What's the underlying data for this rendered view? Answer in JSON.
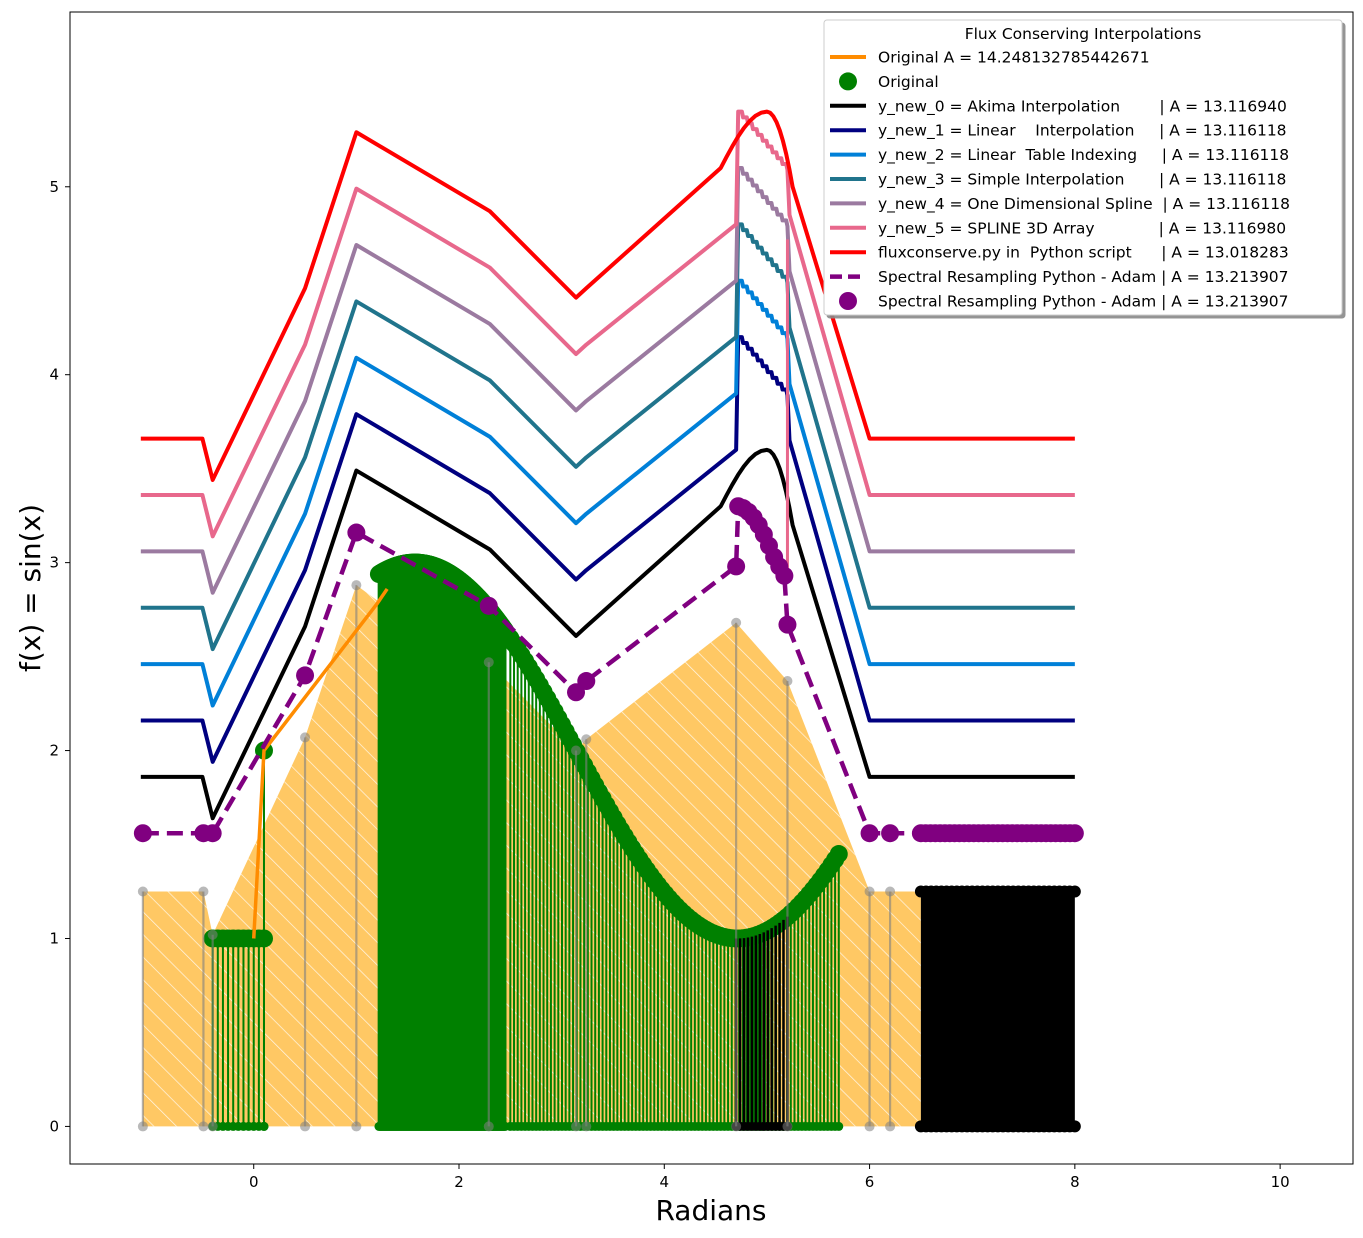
{
  "chart_data": {
    "type": "line",
    "title": "",
    "xlabel": "Radians",
    "ylabel": "f(x) = sin(x)",
    "xlim": [
      -1.79,
      10.71
    ],
    "ylim": [
      -0.2,
      5.93
    ],
    "xticks": [
      0,
      2,
      4,
      6,
      8,
      10
    ],
    "yticks": [
      0,
      1,
      2,
      3,
      4,
      5
    ],
    "grid": false,
    "legend": {
      "title": "Flux Conserving Interpolations",
      "placement": "top-right",
      "entries": [
        {
          "label": "Original A = 14.248132785442671",
          "color": "#ff8c00",
          "style": "line"
        },
        {
          "label": "Original",
          "color": "#008000",
          "style": "marker"
        },
        {
          "label": "y_new_0 = Akima Interpolation        | A = 13.116940",
          "color": "#000000",
          "style": "line"
        },
        {
          "label": "y_new_1 = Linear    Interpolation     | A = 13.116118",
          "color": "#000080",
          "style": "line"
        },
        {
          "label": "y_new_2 = Linear  Table Indexing     | A = 13.116118",
          "color": "#0080d8",
          "style": "line"
        },
        {
          "label": "y_new_3 = Simple Interpolation       | A = 13.116118",
          "color": "#20748c",
          "style": "line"
        },
        {
          "label": "y_new_4 = One Dimensional Spline  | A = 13.116118",
          "color": "#9b7aa0",
          "style": "line"
        },
        {
          "label": "y_new_5 = SPLINE 3D Array             | A = 13.116980",
          "color": "#e8688c",
          "style": "line"
        },
        {
          "label": "fluxconserve.py in  Python script      | A = 13.018283",
          "color": "#ff0000",
          "style": "line"
        },
        {
          "label": "Spectral Resampling Python - Adam | A = 13.213907",
          "color": "#800080",
          "style": "dashed"
        },
        {
          "label": "Spectral Resampling Python - Adam | A = 13.213907",
          "color": "#800080",
          "style": "marker"
        }
      ]
    },
    "original_line": {
      "name": "Original A = 14.248132785442671",
      "color": "#ff8c00",
      "x": [
        0.0,
        0.1,
        1.2,
        1.3
      ],
      "y": [
        1.0,
        2.0,
        2.78,
        2.86
      ]
    },
    "grey_stems": {
      "color": "#808080",
      "x": [
        -1.08,
        -0.49,
        -0.4,
        0.5,
        1.0,
        2.29,
        3.14,
        3.24,
        4.7,
        5.2,
        6.0,
        6.2
      ],
      "y": [
        1.25,
        1.25,
        1.02,
        2.07,
        2.88,
        2.47,
        2.0,
        2.06,
        2.68,
        2.37,
        1.25,
        1.25
      ]
    },
    "orange_fill": {
      "color": "#ffc864",
      "x": [
        -1.08,
        -0.49,
        -0.4,
        0.5,
        1.0,
        1.2,
        2.29,
        3.14,
        3.24,
        4.7,
        5.2,
        6.0,
        6.2,
        6.5
      ],
      "y": [
        1.25,
        1.25,
        1.02,
        2.07,
        2.88,
        2.8,
        2.47,
        2.0,
        2.06,
        2.68,
        2.37,
        1.25,
        1.25,
        1.25
      ]
    },
    "green_stems": {
      "color": "#008000",
      "segments": [
        {
          "func": "const",
          "value": 1.0,
          "x_start": -0.4,
          "x_end": 0.1,
          "count": 11
        },
        {
          "func": "sin_plus_2",
          "x_start": 1.22,
          "x_end": 2.45,
          "count": 130
        },
        {
          "func": "sin_plus_2",
          "x_start": 2.5,
          "x_end": 5.7,
          "count": 90
        }
      ],
      "single_point": [
        0.1,
        2.0
      ]
    },
    "black_block": {
      "color": "#000000",
      "x": [
        6.5,
        8.0
      ],
      "y": [
        0,
        1.25
      ]
    },
    "series": [
      {
        "name": "y_new_0 = Akima Interpolation",
        "offset": 0.0,
        "color": "#000000",
        "smooth_peak": true
      },
      {
        "name": "y_new_1 = Linear Interpolation",
        "offset": 0.3,
        "color": "#000080"
      },
      {
        "name": "y_new_2 = Linear Table Indexing",
        "offset": 0.6,
        "color": "#0080d8"
      },
      {
        "name": "y_new_3 = Simple Interpolation",
        "offset": 0.9,
        "color": "#20748c"
      },
      {
        "name": "y_new_4 = One Dimensional Spline",
        "offset": 1.2,
        "color": "#9b7aa0"
      },
      {
        "name": "y_new_5 = SPLINE 3D Array",
        "offset": 1.5,
        "color": "#e8688c"
      },
      {
        "name": "fluxconserve.py in Python script",
        "offset": 1.8,
        "color": "#ff0000",
        "smooth_peak": true
      }
    ],
    "series_base": {
      "x": [
        -1.1,
        -0.5,
        -0.4,
        0.5,
        1.0,
        2.3,
        3.14,
        3.24,
        4.7,
        6.0,
        8.0
      ],
      "y": [
        1.86,
        1.86,
        1.64,
        2.66,
        3.49,
        3.07,
        2.61,
        2.66,
        3.3,
        1.86,
        1.86
      ],
      "step_peak_x": [
        4.72,
        5.2
      ],
      "step_peak_top": 3.9,
      "step_peak_bottom": 3.59
    },
    "spectral": {
      "name": "Spectral Resampling Python - Adam",
      "color": "#800080",
      "x": [
        -1.08,
        -0.49,
        -0.4,
        0.5,
        1.0,
        2.29,
        3.14,
        3.24,
        4.7,
        4.72,
        4.77,
        4.82,
        4.87,
        4.92,
        4.97,
        5.02,
        5.07,
        5.12,
        5.17,
        5.2,
        6.0,
        6.2,
        6.5,
        8.0
      ],
      "y": [
        1.56,
        1.56,
        1.56,
        2.4,
        3.16,
        2.77,
        2.31,
        2.37,
        2.98,
        3.3,
        3.29,
        3.27,
        3.24,
        3.2,
        3.15,
        3.09,
        3.03,
        2.98,
        2.93,
        2.67,
        1.56,
        1.56,
        1.56,
        1.56
      ]
    }
  }
}
